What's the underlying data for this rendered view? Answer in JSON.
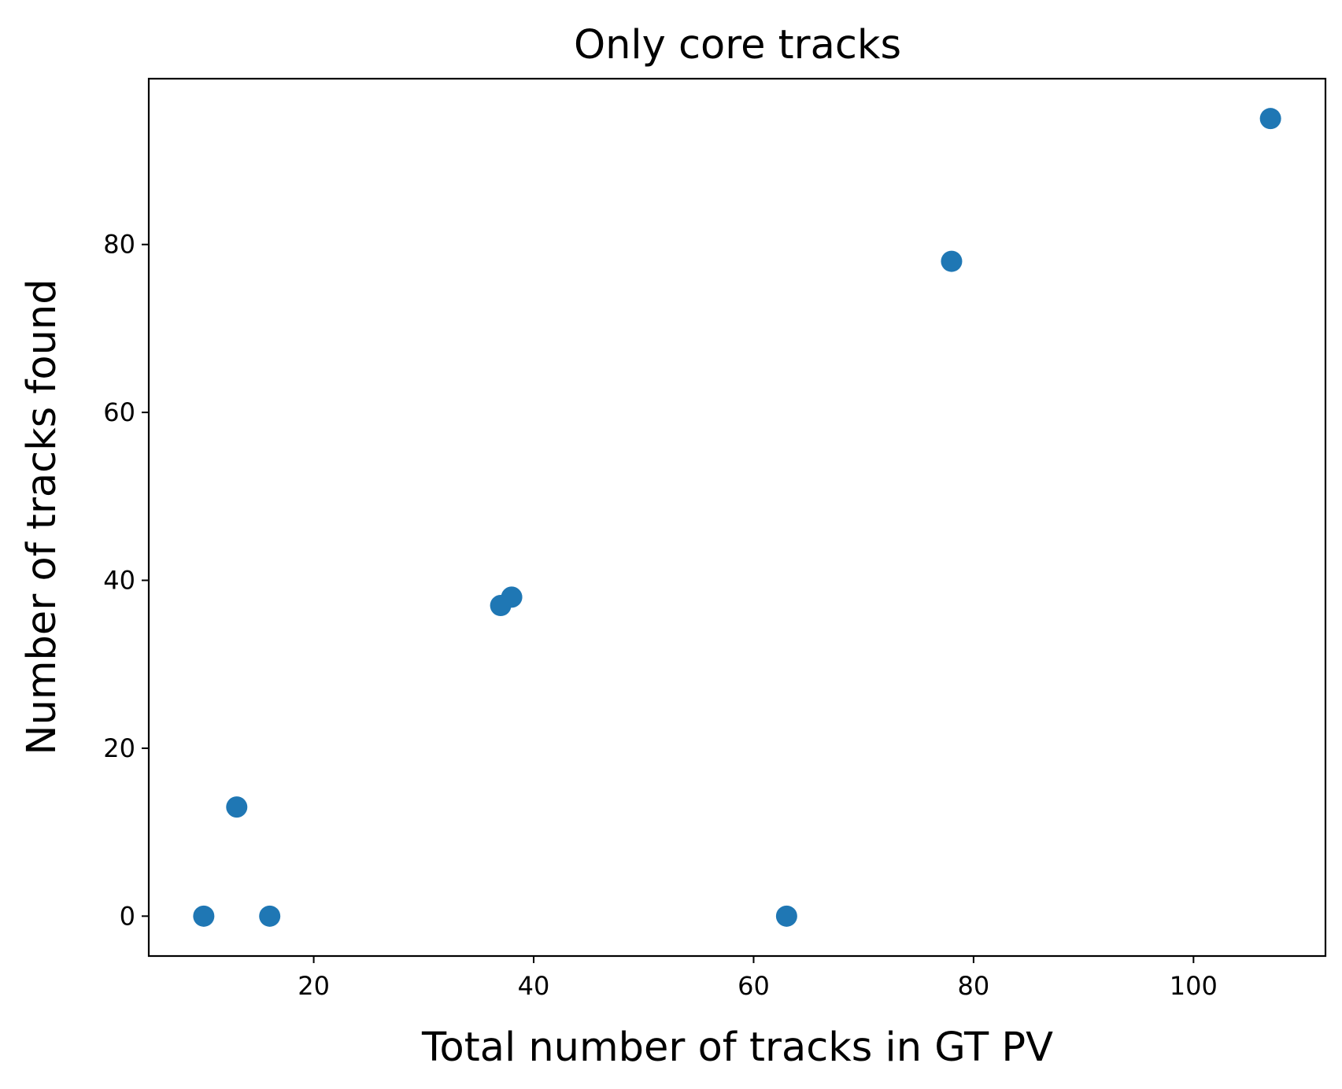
{
  "chart_data": {
    "type": "scatter",
    "title": "Only core tracks",
    "xlabel": "Total number of tracks in GT PV",
    "ylabel": "Number of tracks found",
    "xlim": [
      5,
      112
    ],
    "ylim": [
      -4.75,
      99.75
    ],
    "xticks": [
      20,
      40,
      60,
      80,
      100
    ],
    "yticks": [
      0,
      20,
      40,
      60,
      80
    ],
    "grid": false,
    "legend": "none",
    "marker_color": "#1f77b4",
    "series": [
      {
        "points": [
          {
            "x": 10,
            "y": 0
          },
          {
            "x": 13,
            "y": 13
          },
          {
            "x": 16,
            "y": 0
          },
          {
            "x": 37,
            "y": 37
          },
          {
            "x": 38,
            "y": 38
          },
          {
            "x": 63,
            "y": 0
          },
          {
            "x": 78,
            "y": 78
          },
          {
            "x": 107,
            "y": 95
          }
        ]
      }
    ]
  }
}
